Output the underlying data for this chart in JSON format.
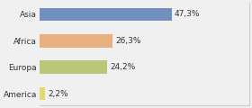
{
  "categories": [
    "Asia",
    "Africa",
    "Europa",
    "America"
  ],
  "values": [
    47.3,
    26.3,
    24.2,
    2.2
  ],
  "labels": [
    "47,3%",
    "26,3%",
    "24,2%",
    "2,2%"
  ],
  "bar_colors": [
    "#7090c0",
    "#e8b080",
    "#b8c878",
    "#e8d870"
  ],
  "background_color": "#f0f0f0",
  "xlim": [
    0,
    75
  ],
  "label_fontsize": 6.5,
  "tick_fontsize": 6.5,
  "bar_height": 0.5
}
